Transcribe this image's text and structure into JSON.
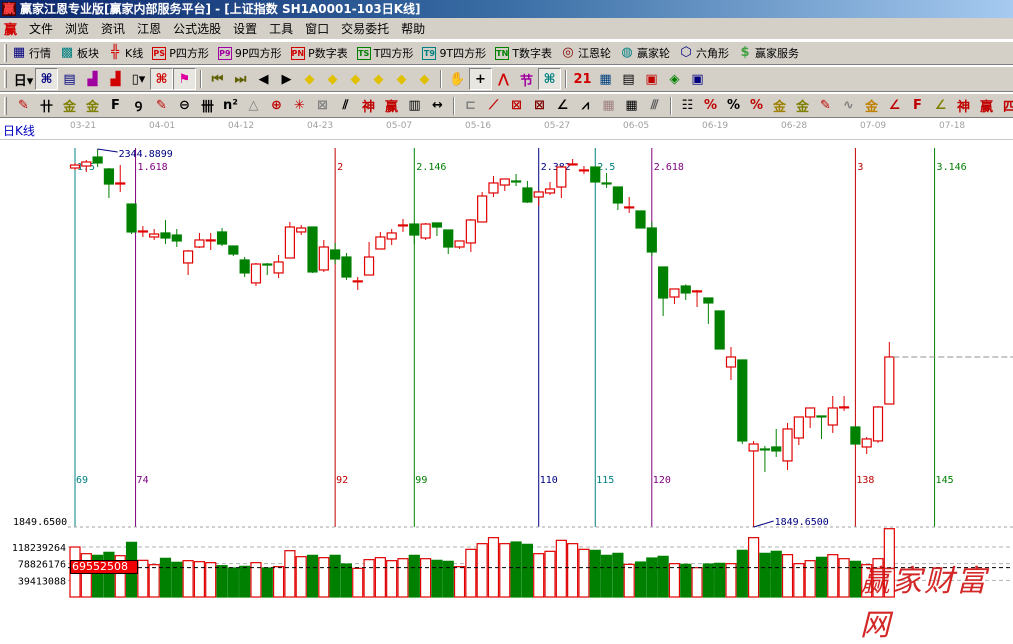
{
  "window": {
    "title": "赢家江恩专业版[赢家内部服务平台] - [上证指数   SH1A0001-103日K线]",
    "logo_icon": "yingjia-logo-icon"
  },
  "menu": {
    "items": [
      "文件",
      "浏览",
      "资讯",
      "江恩",
      "公式选股",
      "设置",
      "工具",
      "窗口",
      "交易委托",
      "帮助"
    ]
  },
  "toolbar1": {
    "items": [
      {
        "label": "行情",
        "icon": "quote-table-icon",
        "glyph": "▦",
        "color": "#000080"
      },
      {
        "label": "板块",
        "icon": "sector-grid-icon",
        "glyph": "▩",
        "color": "#008080"
      },
      {
        "label": "K线",
        "icon": "kline-icon",
        "glyph": "╬",
        "color": "#d00000"
      },
      {
        "label": "P四方形",
        "icon": "ps-icon",
        "glyph": "PS",
        "color": "#d00000"
      },
      {
        "label": "9P四方形",
        "icon": "p9-icon",
        "glyph": "P9",
        "color": "#a000a0"
      },
      {
        "label": "P数字表",
        "icon": "pn-icon",
        "glyph": "PN",
        "color": "#d00000"
      },
      {
        "label": "T四方形",
        "icon": "ts-icon",
        "glyph": "TS",
        "color": "#008000"
      },
      {
        "label": "9T四方形",
        "icon": "t9-icon",
        "glyph": "T9",
        "color": "#008080"
      },
      {
        "label": "T数字表",
        "icon": "tn-icon",
        "glyph": "TN",
        "color": "#008000"
      },
      {
        "label": "江恩轮",
        "icon": "gann-wheel-icon",
        "glyph": "◎",
        "color": "#800000"
      },
      {
        "label": "赢家轮",
        "icon": "winner-wheel-icon",
        "glyph": "◍",
        "color": "#008080"
      },
      {
        "label": "六角形",
        "icon": "hexagon-icon",
        "glyph": "⬡",
        "color": "#000080"
      },
      {
        "label": "赢家服务",
        "icon": "dollar-service-icon",
        "glyph": "$",
        "color": "#40a040"
      }
    ]
  },
  "toolbar2": {
    "items": [
      {
        "icon": "period-day-dropdown",
        "glyph": "日▾",
        "color": "#000"
      },
      {
        "icon": "pattern-icon",
        "glyph": "⌘",
        "color": "#000080",
        "pressed": true
      },
      {
        "icon": "notes-icon",
        "glyph": "▤",
        "color": "#000080"
      },
      {
        "icon": "steps3-icon",
        "glyph": "▟",
        "color": "#a000a0"
      },
      {
        "icon": "steps9-icon",
        "glyph": "▟",
        "color": "#d00000"
      },
      {
        "icon": "candle-type-dropdown",
        "glyph": "▯▾",
        "color": "#000"
      },
      {
        "icon": "swing-icon",
        "glyph": "⌘",
        "color": "#d00000",
        "pressed": true
      },
      {
        "icon": "flag-icon",
        "glyph": "⚑",
        "color": "#e000a0",
        "pressed": true
      },
      {
        "sep": true
      },
      {
        "icon": "first-bar-icon",
        "glyph": "⏮",
        "color": "#606000"
      },
      {
        "icon": "last-bar-icon",
        "glyph": "⏭",
        "color": "#606000"
      },
      {
        "icon": "prev-icon",
        "glyph": "◀",
        "color": "#000"
      },
      {
        "icon": "next-icon",
        "glyph": "▶",
        "color": "#000"
      },
      {
        "icon": "move-left-icon",
        "glyph": "◆",
        "color": "#e0c000"
      },
      {
        "icon": "move-right-icon",
        "glyph": "◆",
        "color": "#e0c000"
      },
      {
        "icon": "expand-h-icon",
        "glyph": "◆",
        "color": "#e0c000"
      },
      {
        "icon": "shrink-h-icon",
        "glyph": "◆",
        "color": "#e0c000"
      },
      {
        "icon": "expand-all-icon",
        "glyph": "◆",
        "color": "#e0c000"
      },
      {
        "icon": "expand-v-icon",
        "glyph": "◆",
        "color": "#e0c000"
      },
      {
        "sep": true
      },
      {
        "icon": "hand-icon",
        "glyph": "✋",
        "color": "#000"
      },
      {
        "icon": "crosshair-icon",
        "glyph": "+",
        "color": "#000",
        "pressed": true
      },
      {
        "icon": "swing-points-icon",
        "glyph": "⋀",
        "color": "#d00000"
      },
      {
        "icon": "solar-term-icon",
        "glyph": "节",
        "color": "#a000a0"
      },
      {
        "icon": "grid-pattern-icon",
        "glyph": "⌘",
        "color": "#008080",
        "pressed": true
      },
      {
        "sep": true
      },
      {
        "icon": "calendar-icon",
        "glyph": "21",
        "color": "#d00000"
      },
      {
        "icon": "calculator-icon",
        "glyph": "▦",
        "color": "#004080"
      },
      {
        "icon": "notepad-icon",
        "glyph": "▤",
        "color": "#000"
      },
      {
        "icon": "save-icon",
        "glyph": "▣",
        "color": "#c00000"
      },
      {
        "icon": "network-icon",
        "glyph": "◈",
        "color": "#008000"
      },
      {
        "icon": "computer-icon",
        "glyph": "▣",
        "color": "#000080"
      }
    ]
  },
  "toolbar3": {
    "items": [
      {
        "icon": "pen-draw-icon",
        "glyph": "✎",
        "color": "#c00000"
      },
      {
        "icon": "gann-lines-icon",
        "glyph": "卄",
        "color": "#000"
      },
      {
        "icon": "gold-lines-icon",
        "glyph": "金",
        "color": "#808000"
      },
      {
        "icon": "gold-lines2-icon",
        "glyph": "金",
        "color": "#808000"
      },
      {
        "icon": "fib-lines-icon",
        "glyph": "F",
        "color": "#000"
      },
      {
        "icon": "spiral-lines-icon",
        "glyph": "Ꝯ",
        "color": "#000"
      },
      {
        "icon": "pen-ruler-icon",
        "glyph": "✎",
        "color": "#c00000"
      },
      {
        "icon": "circle-ruler-icon",
        "glyph": "⊖",
        "color": "#000"
      },
      {
        "icon": "cycle-lines-icon",
        "glyph": "卌",
        "color": "#000"
      },
      {
        "icon": "n-square-icon",
        "glyph": "n²",
        "color": "#000"
      },
      {
        "icon": "triangle-icon",
        "glyph": "△",
        "color": "#808080"
      },
      {
        "icon": "target-icon",
        "glyph": "⊕",
        "color": "#c00000"
      },
      {
        "icon": "star-icon",
        "glyph": "✳",
        "color": "#c00000"
      },
      {
        "icon": "square-box-icon",
        "glyph": "⊠",
        "color": "#808080"
      },
      {
        "icon": "angle-lines-icon",
        "glyph": "⫽",
        "color": "#000"
      },
      {
        "icon": "shen-icon",
        "glyph": "神",
        "color": "#c00000"
      },
      {
        "icon": "ying-icon",
        "glyph": "赢",
        "color": "#c00000"
      },
      {
        "icon": "ruler-icon",
        "glyph": "▥",
        "color": "#000"
      },
      {
        "icon": "width-icon",
        "glyph": "↔",
        "color": "#000"
      },
      {
        "sep": true
      },
      {
        "icon": "box-icon",
        "glyph": "⊏",
        "color": "#808080"
      },
      {
        "icon": "fan-icon",
        "glyph": "⟋",
        "color": "#c00000"
      },
      {
        "icon": "gann-box-icon",
        "glyph": "⊠",
        "color": "#c00000"
      },
      {
        "icon": "gann-fan-box-icon",
        "glyph": "⊠",
        "color": "#800000"
      },
      {
        "icon": "angle-fan-icon",
        "glyph": "∠",
        "color": "#000"
      },
      {
        "icon": "zigzag-icon",
        "glyph": "⩘",
        "color": "#000"
      },
      {
        "icon": "grid-icon",
        "glyph": "▦",
        "color": "#a08080"
      },
      {
        "icon": "grid-arrow-icon",
        "glyph": "▦",
        "color": "#000"
      },
      {
        "icon": "parallel-icon",
        "glyph": "⫻",
        "color": "#606060"
      },
      {
        "sep": true
      },
      {
        "icon": "table-lines-icon",
        "glyph": "☷",
        "color": "#000"
      },
      {
        "icon": "percent-fan-icon",
        "glyph": "%",
        "color": "#c00000"
      },
      {
        "icon": "percent-icon",
        "glyph": "%",
        "color": "#000"
      },
      {
        "icon": "percent-lines-icon",
        "glyph": "%",
        "color": "#c00000"
      },
      {
        "icon": "gold-coin-icon",
        "glyph": "金",
        "color": "#a08000"
      },
      {
        "icon": "gold-lines3-icon",
        "glyph": "金",
        "color": "#808000"
      },
      {
        "icon": "pen-bar-icon",
        "glyph": "✎",
        "color": "#c00000"
      },
      {
        "icon": "sine-icon",
        "glyph": "∿",
        "color": "#808080"
      },
      {
        "icon": "gold-red-icon",
        "glyph": "金",
        "color": "#c08000"
      },
      {
        "icon": "j-angle-icon",
        "glyph": "∠",
        "color": "#c00000"
      },
      {
        "icon": "f-angle-icon",
        "glyph": "F",
        "color": "#c00000"
      },
      {
        "icon": "gold-angle-icon",
        "glyph": "∠",
        "color": "#808000"
      },
      {
        "icon": "shen-angle-icon",
        "glyph": "神",
        "color": "#c00000"
      },
      {
        "icon": "ying-angle-icon",
        "glyph": "赢",
        "color": "#c00000"
      },
      {
        "icon": "four-angle-icon",
        "glyph": "四",
        "color": "#c00000"
      }
    ]
  },
  "chart_header": {
    "label": "日K线",
    "dates": [
      "03-21",
      "04-01",
      "04-12",
      "04-23",
      "05-07",
      "05-16",
      "05-27",
      "06-05",
      "06-19",
      "06-28",
      "07-09",
      "07-18"
    ]
  },
  "colors": {
    "up": "#e00000",
    "down": "#008000",
    "background": "#ffffff"
  },
  "chart_data": [
    {
      "type": "candlestick",
      "title": "日K线",
      "high_label": "2344.8899",
      "low_label": "1849.6500",
      "axis_label": "1849.6500",
      "ohlc": [
        [
          2320.0,
          2326.6,
          2317.4,
          2323.9
        ],
        [
          2322.6,
          2330.5,
          2314.8,
          2327.9
        ],
        [
          2334.4,
          2344.89,
          2321.3,
          2326.6
        ],
        [
          2318.7,
          2320.0,
          2280.7,
          2299.0
        ],
        [
          2299.0,
          2323.9,
          2288.6,
          2300.4
        ],
        [
          2272.8,
          2272.8,
          2233.5,
          2236.2
        ],
        [
          2237.5,
          2244.0,
          2229.6,
          2237.5
        ],
        [
          2229.6,
          2240.1,
          2225.7,
          2233.5
        ],
        [
          2234.9,
          2251.9,
          2220.4,
          2228.3
        ],
        [
          2232.2,
          2240.1,
          2216.5,
          2224.4
        ],
        [
          2195.6,
          2212.6,
          2179.8,
          2211.3
        ],
        [
          2216.5,
          2234.9,
          2215.2,
          2225.7
        ],
        [
          2225.7,
          2234.9,
          2212.6,
          2225.8
        ],
        [
          2236.2,
          2241.4,
          2217.8,
          2220.4
        ],
        [
          2217.8,
          2217.8,
          2204.7,
          2207.3
        ],
        [
          2199.5,
          2203.4,
          2177.2,
          2182.5
        ],
        [
          2169.4,
          2195.6,
          2165.4,
          2194.2
        ],
        [
          2194.2,
          2195.6,
          2179.8,
          2194.1
        ],
        [
          2182.5,
          2206.0,
          2175.9,
          2196.9
        ],
        [
          2202.1,
          2249.3,
          2202.1,
          2242.7
        ],
        [
          2236.2,
          2245.3,
          2232.2,
          2241.4
        ],
        [
          2242.7,
          2242.7,
          2182.5,
          2183.8
        ],
        [
          2186.4,
          2225.7,
          2183.8,
          2216.5
        ],
        [
          2212.6,
          2221.8,
          2194.2,
          2200.8
        ],
        [
          2203.4,
          2208.7,
          2173.3,
          2177.2
        ],
        [
          2172.0,
          2177.2,
          2160.2,
          2172.1
        ],
        [
          2179.8,
          2223.1,
          2179.8,
          2203.4
        ],
        [
          2213.9,
          2236.2,
          2213.9,
          2229.6
        ],
        [
          2227.0,
          2240.1,
          2219.1,
          2234.9
        ],
        [
          2245.3,
          2253.2,
          2236.2,
          2245.4
        ],
        [
          2246.6,
          2246.6,
          2220.4,
          2232.2
        ],
        [
          2228.3,
          2248.0,
          2225.7,
          2246.6
        ],
        [
          2248.0,
          2248.0,
          2230.9,
          2242.7
        ],
        [
          2238.8,
          2238.8,
          2207.3,
          2216.5
        ],
        [
          2216.5,
          2224.4,
          2213.9,
          2224.4
        ],
        [
          2221.8,
          2253.2,
          2210.0,
          2251.9
        ],
        [
          2249.3,
          2288.6,
          2249.3,
          2283.3
        ],
        [
          2287.3,
          2309.5,
          2282.0,
          2300.4
        ],
        [
          2297.7,
          2305.6,
          2289.9,
          2305.6
        ],
        [
          2303.0,
          2312.1,
          2296.4,
          2302.9
        ],
        [
          2293.8,
          2303.0,
          2274.2,
          2275.5
        ],
        [
          2282.0,
          2288.6,
          2270.2,
          2288.6
        ],
        [
          2287.3,
          2301.7,
          2284.6,
          2292.5
        ],
        [
          2295.1,
          2321.3,
          2280.7,
          2321.3
        ],
        [
          2325.2,
          2331.8,
          2325.2,
          2325.3
        ],
        [
          2317.4,
          2322.6,
          2312.1,
          2317.5
        ],
        [
          2321.3,
          2321.3,
          2301.7,
          2301.7
        ],
        [
          2300.4,
          2313.5,
          2293.8,
          2300.3
        ],
        [
          2295.1,
          2295.1,
          2265.0,
          2274.2
        ],
        [
          2268.9,
          2282.0,
          2261.1,
          2269.0
        ],
        [
          2263.7,
          2263.7,
          2241.4,
          2241.4
        ],
        [
          2241.4,
          2249.3,
          2204.7,
          2210.0
        ],
        [
          2190.3,
          2190.3,
          2126.1,
          2149.7
        ],
        [
          2151.0,
          2161.5,
          2141.8,
          2161.5
        ],
        [
          2165.4,
          2167.5,
          2147.1,
          2156.3
        ],
        [
          2158.9,
          2160.2,
          2137.9,
          2159.0
        ],
        [
          2149.7,
          2149.7,
          2115.6,
          2143.2
        ],
        [
          2132.7,
          2132.7,
          2082.9,
          2082.9
        ],
        [
          2059.3,
          2085.5,
          2042.3,
          2072.4
        ],
        [
          2068.5,
          2068.5,
          1958.4,
          1962.4
        ],
        [
          1949.3,
          1962.4,
          1849.65,
          1958.4
        ],
        [
          1951.9,
          1955.8,
          1921.8,
          1951.8
        ],
        [
          1954.5,
          1978.1,
          1941.4,
          1949.3
        ],
        [
          1936.2,
          1986.0,
          1924.4,
          1978.1
        ],
        [
          1966.3,
          1993.8,
          1957.1,
          1993.8
        ],
        [
          1993.8,
          2005.6,
          1979.4,
          2005.6
        ],
        [
          1995.1,
          1995.1,
          1965.0,
          1995.0
        ],
        [
          1983.3,
          2021.3,
          1972.9,
          2005.6
        ],
        [
          2006.9,
          2021.3,
          2001.7,
          2007.0
        ],
        [
          1980.7,
          1980.7,
          1958.4,
          1958.4
        ],
        [
          1954.5,
          1967.6,
          1945.3,
          1965.0
        ],
        [
          1962.4,
          2008.2,
          1959.8,
          2006.9
        ],
        [
          2010.8,
          2092.1,
          2010.8,
          2072.4
        ]
      ],
      "ylim": [
        1849.65,
        2344.89
      ],
      "last_price_line": 2072.4,
      "gann_lines": [
        {
          "bar": 69,
          "ratio": "1.5",
          "color": "#008080"
        },
        {
          "bar": 74,
          "ratio": "1.618",
          "color": "#800080"
        },
        {
          "bar": 92,
          "ratio": "2",
          "color": "#c00000"
        },
        {
          "bar": 99,
          "ratio": "2.146",
          "color": "#008000"
        },
        {
          "bar": 110,
          "ratio": "2.382",
          "color": "#000080"
        },
        {
          "bar": 115,
          "ratio": "2.5",
          "color": "#008080"
        },
        {
          "bar": 120,
          "ratio": "2.618",
          "color": "#800080"
        },
        {
          "bar": 138,
          "ratio": "3",
          "color": "#c00000"
        },
        {
          "bar": 145,
          "ratio": "3.146",
          "color": "#008000"
        }
      ]
    },
    {
      "type": "bar",
      "title": "volume",
      "ticks": [
        "118239264",
        "78826176",
        "39413088"
      ],
      "tick_values": [
        118239264,
        78826176,
        39413088
      ],
      "marker_label": "69552508",
      "marker_value": 69552508,
      "values": [
        118.2,
        102.4,
        98.5,
        105.6,
        97.7,
        129.2,
        86.7,
        76.4,
        91.4,
        82.0,
        85.9,
        83.5,
        81.2,
        74.1,
        68.6,
        72.5,
        81.2,
        68.6,
        71.7,
        109.5,
        95.3,
        98.5,
        93.0,
        98.5,
        78.0,
        67.8,
        88.3,
        93.0,
        85.9,
        90.6,
        98.5,
        90.6,
        86.7,
        84.3,
        71.7,
        112.7,
        126.1,
        140.3,
        126.1,
        130.0,
        124.5,
        102.4,
        108.0,
        134.0,
        126.1,
        112.7,
        110.3,
        98.5,
        103.2,
        77.2,
        82.7,
        92.2,
        96.1,
        78.8,
        77.2,
        69.3,
        78.0,
        79.6,
        78.8,
        110.3,
        140.3,
        103.2,
        108.0,
        100.1,
        78.8,
        85.9,
        93.8,
        100.1,
        90.6,
        84.3,
        76.4,
        90.6,
        161.5
      ],
      "value_unit": "million"
    }
  ],
  "watermark": "赢家财富网"
}
